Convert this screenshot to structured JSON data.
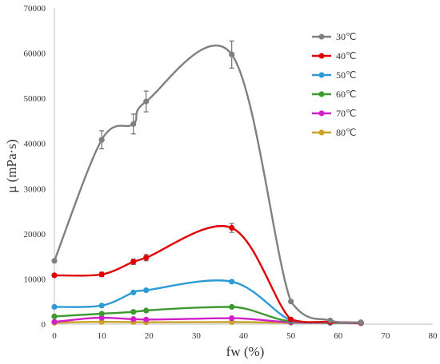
{
  "chart_data": {
    "type": "line",
    "title": "",
    "xlabel": "fw (%)",
    "ylabel": "μ (mPa·s)",
    "xlim": [
      0,
      80
    ],
    "ylim": [
      0,
      70000
    ],
    "x_ticks": [
      0,
      10,
      20,
      30,
      40,
      50,
      60,
      70,
      80
    ],
    "y_ticks": [
      0,
      10000,
      20000,
      30000,
      40000,
      50000,
      60000,
      70000
    ],
    "x_tick_labels": [
      "0",
      "10",
      "20",
      "30",
      "40",
      "50",
      "60",
      "70",
      "80"
    ],
    "y_tick_labels": [
      "0",
      "10000",
      "20000",
      "30000",
      "40000",
      "50000",
      "60000",
      "70000"
    ],
    "grid": false,
    "legend_position": "top-right",
    "series": [
      {
        "name": "30℃",
        "color": "#808080",
        "x": [
          0,
          10,
          16.7,
          19.4,
          37.5,
          50,
          58.3,
          64.8
        ],
        "y": [
          14000,
          40800,
          44300,
          49300,
          59700,
          5000,
          800,
          400
        ],
        "error": [
          0,
          2000,
          2200,
          2300,
          3000,
          0,
          0,
          0
        ]
      },
      {
        "name": "40℃",
        "color": "#E00000",
        "x": [
          0,
          10,
          16.7,
          19.4,
          37.5,
          50,
          58.3,
          64.8
        ],
        "y": [
          10800,
          11000,
          13800,
          14700,
          21300,
          1000,
          500,
          300
        ],
        "error": [
          0,
          500,
          600,
          700,
          1000,
          0,
          0,
          0
        ]
      },
      {
        "name": "50℃",
        "color": "#2E9BD6",
        "x": [
          0,
          10,
          16.7,
          19.4,
          37.5,
          50,
          58.3,
          64.8
        ],
        "y": [
          3800,
          4100,
          7000,
          7500,
          9400,
          800,
          400,
          300
        ],
        "error": [
          0,
          0,
          0,
          0,
          0,
          0,
          0,
          0
        ]
      },
      {
        "name": "60℃",
        "color": "#3D9A2E",
        "x": [
          0,
          10,
          16.7,
          19.4,
          37.5,
          50,
          58.3,
          64.8
        ],
        "y": [
          1700,
          2300,
          2700,
          3000,
          3800,
          600,
          350,
          250
        ],
        "error": [
          0,
          0,
          0,
          0,
          0,
          0,
          0,
          0
        ]
      },
      {
        "name": "70℃",
        "color": "#D11FC9",
        "x": [
          0,
          10,
          16.7,
          19.4,
          37.5,
          50,
          58.3,
          64.8
        ],
        "y": [
          500,
          1400,
          1100,
          1000,
          1300,
          400,
          300,
          200
        ],
        "error": [
          0,
          0,
          0,
          0,
          0,
          0,
          0,
          0
        ]
      },
      {
        "name": "80℃",
        "color": "#C9A227",
        "x": [
          0,
          10,
          16.7,
          19.4,
          37.5,
          50,
          58.3,
          64.8
        ],
        "y": [
          300,
          500,
          450,
          400,
          450,
          300,
          250,
          200
        ],
        "error": [
          0,
          0,
          0,
          0,
          0,
          0,
          0,
          0
        ]
      }
    ]
  }
}
